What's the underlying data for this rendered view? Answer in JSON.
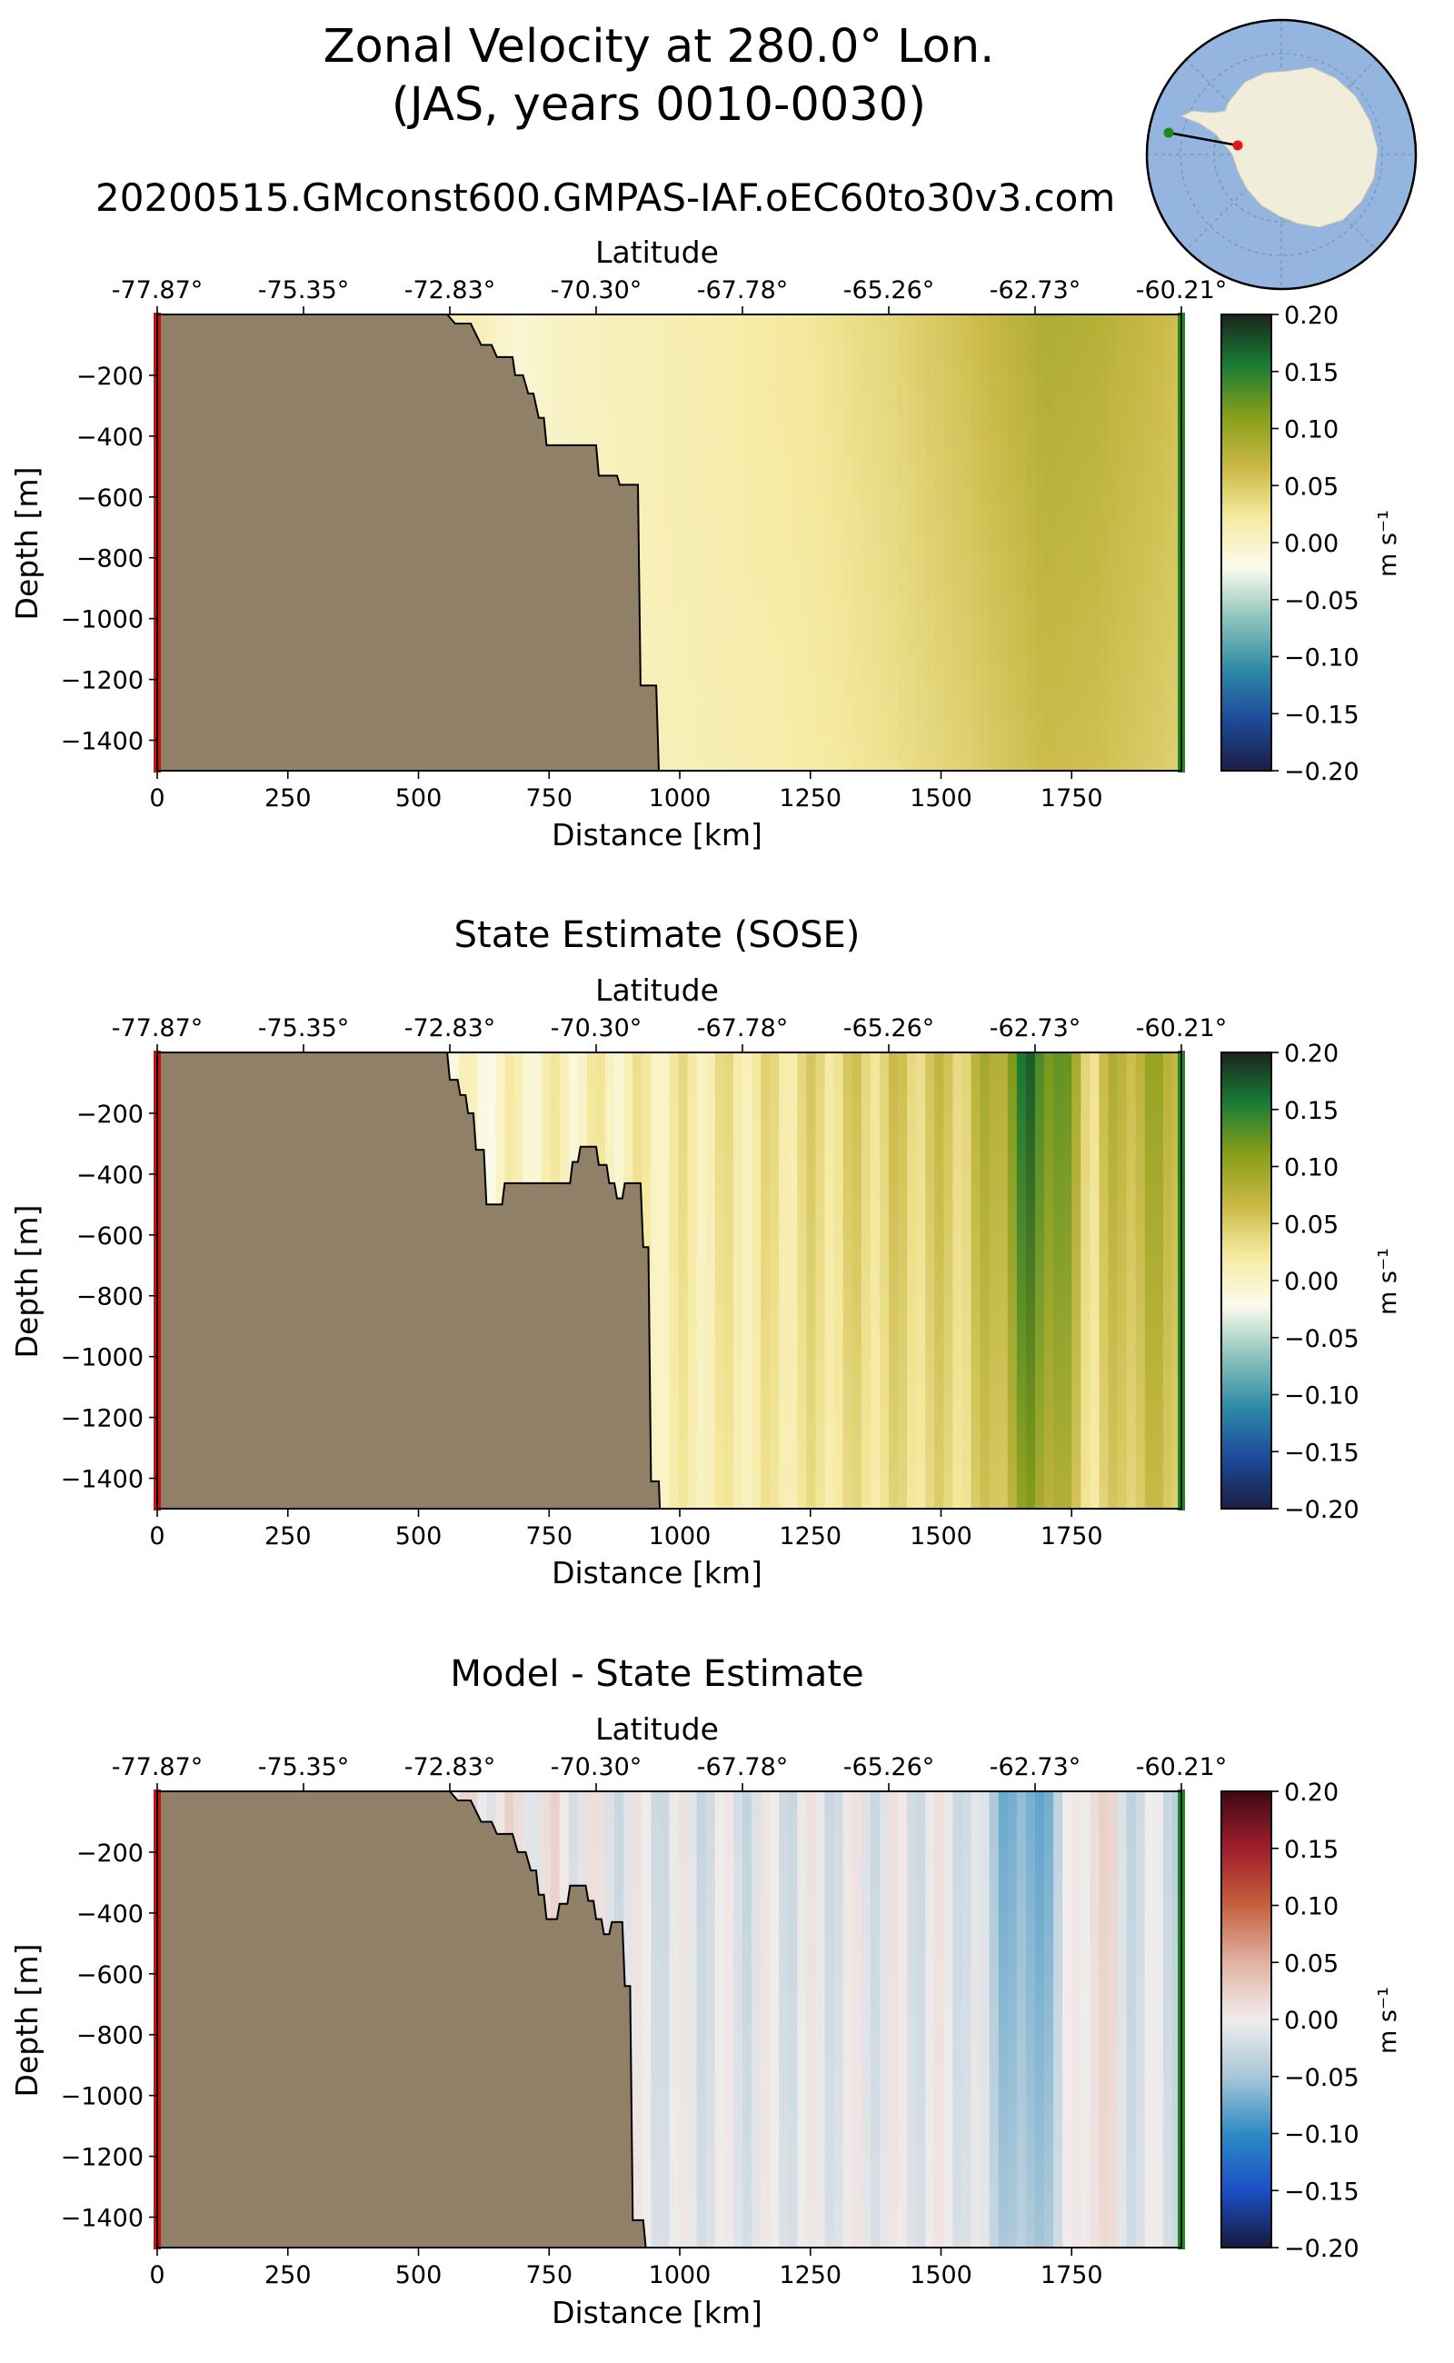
{
  "figure": {
    "title_line1": "Zonal Velocity at 280.0° Lon.",
    "title_line2": "(JAS, years 0010-0030)",
    "run_name": "20200515.GMconst600.GMPAS-IAF.oEC60to30v3.com",
    "inset_map": {
      "type": "south-polar-stereographic",
      "land_color": "#f0eedb",
      "ocean_color": "#93b5e0",
      "transect_start_color": "#1a8a1a",
      "transect_end_color": "#e01818",
      "transect_line_color": "#000000"
    }
  },
  "colors": {
    "land_mask": "#8f8067",
    "start_marker": "#cc1111",
    "end_marker": "#1a8a1a"
  },
  "chart_data": [
    {
      "type": "heatmap",
      "name": "model",
      "title": "",
      "xlabel": "Distance [km]",
      "top_xlabel": "Latitude",
      "ylabel": "Depth [m]",
      "xlim": [
        0,
        1960
      ],
      "ylim": [
        -1500,
        0
      ],
      "x_ticks": [
        0,
        250,
        500,
        750,
        1000,
        1250,
        1500,
        1750
      ],
      "x_tick_labels": [
        "0",
        "250",
        "500",
        "750",
        "1000",
        "1250",
        "1500",
        "1750"
      ],
      "y_ticks": [
        -200,
        -400,
        -600,
        -800,
        -1000,
        -1200,
        -1400
      ],
      "y_tick_labels": [
        "−200",
        "−400",
        "−600",
        "−800",
        "−1000",
        "−1200",
        "−1400"
      ],
      "lat_tick_positions_km": [
        0,
        280,
        560,
        840,
        1120,
        1400,
        1680,
        1960
      ],
      "lat_tick_labels": [
        "-77.87°",
        "-75.35°",
        "-72.83°",
        "-70.30°",
        "-67.78°",
        "-65.26°",
        "-62.73°",
        "-60.21°"
      ],
      "colorbar": {
        "label": "m s⁻¹",
        "range": [
          -0.2,
          0.2
        ],
        "tick_labels": [
          "0.20",
          "0.15",
          "0.10",
          "0.05",
          "0.00",
          "−0.05",
          "−0.10",
          "−0.15",
          "−0.20"
        ],
        "colormap": "delta",
        "colors": [
          "#1b1e44",
          "#1d4a9a",
          "#2e8aa6",
          "#8cc3bb",
          "#fbfbed",
          "#f6eaa0",
          "#c9b844",
          "#879e18",
          "#197d36",
          "#19261c"
        ]
      },
      "bathymetry": [
        [
          0,
          0
        ],
        [
          555,
          0
        ],
        [
          570,
          -30
        ],
        [
          600,
          -30
        ],
        [
          620,
          -100
        ],
        [
          640,
          -100
        ],
        [
          650,
          -140
        ],
        [
          680,
          -140
        ],
        [
          685,
          -200
        ],
        [
          700,
          -200
        ],
        [
          710,
          -260
        ],
        [
          720,
          -260
        ],
        [
          730,
          -340
        ],
        [
          740,
          -340
        ],
        [
          745,
          -430
        ],
        [
          840,
          -430
        ],
        [
          845,
          -530
        ],
        [
          880,
          -530
        ],
        [
          885,
          -560
        ],
        [
          920,
          -560
        ],
        [
          925,
          -1220
        ],
        [
          955,
          -1220
        ],
        [
          960,
          -1500
        ],
        [
          0,
          -1500
        ]
      ],
      "profile": [
        [
          0,
          0
        ],
        [
          600,
          0.01
        ],
        [
          700,
          -0.008
        ],
        [
          760,
          0.0
        ],
        [
          900,
          0.008
        ],
        [
          1060,
          0.015
        ],
        [
          1250,
          0.025
        ],
        [
          1400,
          0.04
        ],
        [
          1550,
          0.06
        ],
        [
          1700,
          0.085
        ],
        [
          1800,
          0.08
        ],
        [
          1960,
          0.06
        ]
      ],
      "stripe_amp": 0,
      "depth_decay": 0.25
    },
    {
      "type": "heatmap",
      "name": "sose",
      "title": "State Estimate (SOSE)",
      "xlabel": "Distance [km]",
      "top_xlabel": "Latitude",
      "ylabel": "Depth [m]",
      "xlim": [
        0,
        1960
      ],
      "ylim": [
        -1500,
        0
      ],
      "x_ticks": [
        0,
        250,
        500,
        750,
        1000,
        1250,
        1500,
        1750
      ],
      "x_tick_labels": [
        "0",
        "250",
        "500",
        "750",
        "1000",
        "1250",
        "1500",
        "1750"
      ],
      "y_ticks": [
        -200,
        -400,
        -600,
        -800,
        -1000,
        -1200,
        -1400
      ],
      "y_tick_labels": [
        "−200",
        "−400",
        "−600",
        "−800",
        "−1000",
        "−1200",
        "−1400"
      ],
      "lat_tick_positions_km": [
        0,
        280,
        560,
        840,
        1120,
        1400,
        1680,
        1960
      ],
      "lat_tick_labels": [
        "-77.87°",
        "-75.35°",
        "-72.83°",
        "-70.30°",
        "-67.78°",
        "-65.26°",
        "-62.73°",
        "-60.21°"
      ],
      "colorbar": {
        "label": "m s⁻¹",
        "range": [
          -0.2,
          0.2
        ],
        "tick_labels": [
          "0.20",
          "0.15",
          "0.10",
          "0.05",
          "0.00",
          "−0.05",
          "−0.10",
          "−0.15",
          "−0.20"
        ],
        "colormap": "delta",
        "colors": [
          "#1b1e44",
          "#1d4a9a",
          "#2e8aa6",
          "#8cc3bb",
          "#fbfbed",
          "#f6eaa0",
          "#c9b844",
          "#879e18",
          "#197d36",
          "#19261c"
        ]
      },
      "bathymetry": [
        [
          0,
          0
        ],
        [
          555,
          0
        ],
        [
          560,
          -90
        ],
        [
          575,
          -90
        ],
        [
          580,
          -140
        ],
        [
          590,
          -140
        ],
        [
          595,
          -200
        ],
        [
          605,
          -200
        ],
        [
          610,
          -320
        ],
        [
          625,
          -320
        ],
        [
          630,
          -500
        ],
        [
          660,
          -500
        ],
        [
          665,
          -430
        ],
        [
          790,
          -430
        ],
        [
          795,
          -360
        ],
        [
          805,
          -360
        ],
        [
          810,
          -310
        ],
        [
          840,
          -310
        ],
        [
          845,
          -370
        ],
        [
          860,
          -370
        ],
        [
          865,
          -430
        ],
        [
          875,
          -430
        ],
        [
          880,
          -480
        ],
        [
          890,
          -480
        ],
        [
          895,
          -430
        ],
        [
          925,
          -430
        ],
        [
          930,
          -640
        ],
        [
          940,
          -640
        ],
        [
          945,
          -1410
        ],
        [
          960,
          -1410
        ],
        [
          962,
          -1500
        ],
        [
          0,
          -1500
        ]
      ],
      "profile": [
        [
          0,
          0
        ],
        [
          600,
          -0.008
        ],
        [
          700,
          0.005
        ],
        [
          900,
          0.012
        ],
        [
          1000,
          0.018
        ],
        [
          1150,
          0.025
        ],
        [
          1300,
          0.04
        ],
        [
          1450,
          0.05
        ],
        [
          1550,
          0.055
        ],
        [
          1610,
          0.09
        ],
        [
          1670,
          0.16
        ],
        [
          1730,
          0.12
        ],
        [
          1790,
          0.04
        ],
        [
          1850,
          0.08
        ],
        [
          1960,
          0.09
        ]
      ],
      "stripe_amp": 0.02,
      "stripe_period": 82,
      "depth_decay": 0.35
    },
    {
      "type": "heatmap",
      "name": "difference",
      "title": "Model - State Estimate",
      "xlabel": "Distance [km]",
      "top_xlabel": "Latitude",
      "ylabel": "Depth [m]",
      "xlim": [
        0,
        1960
      ],
      "ylim": [
        -1500,
        0
      ],
      "x_ticks": [
        0,
        250,
        500,
        750,
        1000,
        1250,
        1500,
        1750
      ],
      "x_tick_labels": [
        "0",
        "250",
        "500",
        "750",
        "1000",
        "1250",
        "1500",
        "1750"
      ],
      "y_ticks": [
        -200,
        -400,
        -600,
        -800,
        -1000,
        -1200,
        -1400
      ],
      "y_tick_labels": [
        "−200",
        "−400",
        "−600",
        "−800",
        "−1000",
        "−1200",
        "−1400"
      ],
      "lat_tick_positions_km": [
        0,
        280,
        560,
        840,
        1120,
        1400,
        1680,
        1960
      ],
      "lat_tick_labels": [
        "-77.87°",
        "-75.35°",
        "-72.83°",
        "-70.30°",
        "-67.78°",
        "-65.26°",
        "-62.73°",
        "-60.21°"
      ],
      "colorbar": {
        "label": "m s⁻¹",
        "range": [
          -0.2,
          0.2
        ],
        "tick_labels": [
          "0.20",
          "0.15",
          "0.10",
          "0.05",
          "0.00",
          "−0.05",
          "−0.10",
          "−0.15",
          "−0.20"
        ],
        "colormap": "balance",
        "colors": [
          "#17193f",
          "#1b50c4",
          "#2d8bc4",
          "#a8c7d8",
          "#f1ecec",
          "#e0b3a3",
          "#c5603d",
          "#a11d2c",
          "#3e0a14"
        ]
      },
      "bathymetry": [
        [
          0,
          0
        ],
        [
          560,
          0
        ],
        [
          575,
          -30
        ],
        [
          600,
          -30
        ],
        [
          620,
          -100
        ],
        [
          640,
          -100
        ],
        [
          650,
          -140
        ],
        [
          680,
          -140
        ],
        [
          690,
          -200
        ],
        [
          705,
          -200
        ],
        [
          715,
          -260
        ],
        [
          725,
          -260
        ],
        [
          730,
          -340
        ],
        [
          740,
          -340
        ],
        [
          745,
          -420
        ],
        [
          765,
          -420
        ],
        [
          770,
          -370
        ],
        [
          785,
          -370
        ],
        [
          790,
          -310
        ],
        [
          820,
          -310
        ],
        [
          825,
          -360
        ],
        [
          835,
          -360
        ],
        [
          840,
          -420
        ],
        [
          850,
          -420
        ],
        [
          855,
          -470
        ],
        [
          865,
          -470
        ],
        [
          870,
          -430
        ],
        [
          890,
          -430
        ],
        [
          895,
          -640
        ],
        [
          905,
          -640
        ],
        [
          910,
          -1410
        ],
        [
          930,
          -1410
        ],
        [
          935,
          -1500
        ],
        [
          0,
          -1500
        ]
      ],
      "profile": [
        [
          0,
          0
        ],
        [
          650,
          0.005
        ],
        [
          760,
          0.004
        ],
        [
          900,
          -0.01
        ],
        [
          1050,
          -0.012
        ],
        [
          1150,
          -0.012
        ],
        [
          1250,
          -0.01
        ],
        [
          1400,
          -0.008
        ],
        [
          1550,
          -0.01
        ],
        [
          1610,
          -0.05
        ],
        [
          1670,
          -0.085
        ],
        [
          1720,
          -0.04
        ],
        [
          1790,
          0.03
        ],
        [
          1850,
          -0.015
        ],
        [
          1960,
          -0.02
        ]
      ],
      "stripe_amp": 0.02,
      "stripe_period": 82,
      "depth_decay": 0.35
    }
  ]
}
